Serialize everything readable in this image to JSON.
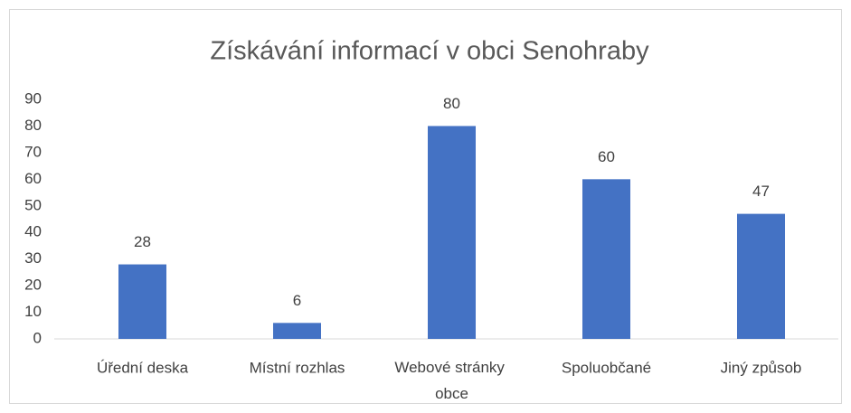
{
  "chart_data": {
    "type": "bar",
    "title": "Získávání informací v obci Senohraby",
    "categories": [
      "Úřední deska",
      "Místní rozhlas",
      "Webové stránky obce",
      "Spoluobčané",
      "Jiný způsob"
    ],
    "values": [
      28,
      6,
      80,
      60,
      47
    ],
    "color": "#4472c4",
    "ylim": [
      0,
      90
    ],
    "yticks": [
      0,
      10,
      20,
      30,
      40,
      50,
      60,
      70,
      80,
      90
    ],
    "grid": false,
    "data_labels": true
  }
}
